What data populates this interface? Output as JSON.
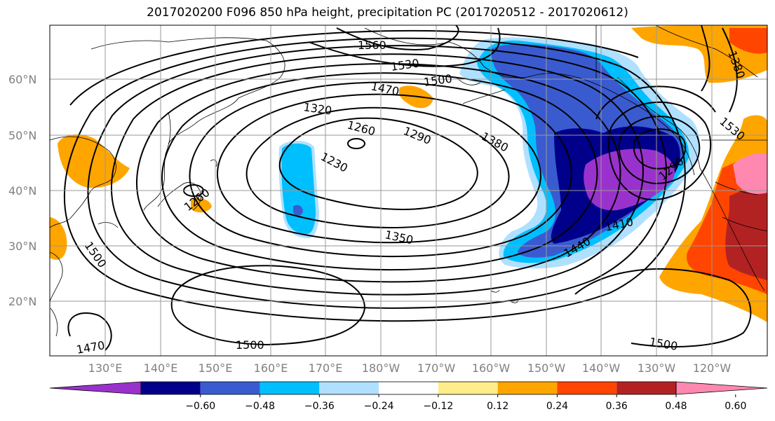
{
  "title": "2017020200 F096 850 hPa height, precipitation PC (2017020512 - 2017020612)",
  "lat_labels": [
    "60°N",
    "50°N",
    "40°N",
    "30°N",
    "20°N"
  ],
  "lon_labels": [
    "130°E",
    "140°E",
    "150°E",
    "160°E",
    "170°E",
    "180°W",
    "170°W",
    "160°W",
    "150°W",
    "140°W",
    "130°W",
    "120°W"
  ],
  "contour_labels": [
    "1560",
    "1530",
    "1500",
    "1470",
    "1320",
    "1260",
    "1290",
    "1380",
    "1230",
    "1260",
    "1350",
    "1410",
    "1440",
    "1290",
    "1500",
    "1500",
    "1500",
    "1470",
    "1380",
    "1530"
  ],
  "colorbar": {
    "tick_labels": [
      "−0.60",
      "−0.48",
      "−0.36",
      "−0.24",
      "−0.12",
      "0.12",
      "0.24",
      "0.36",
      "0.48",
      "0.60"
    ],
    "colors": [
      "#9932CC",
      "#00008B",
      "#3A5BD0",
      "#00BFFF",
      "#B0E0FF",
      "#FFFFFF",
      "#FFEC8B",
      "#FFA500",
      "#FF4500",
      "#B22222",
      "#FF88B0"
    ]
  }
}
